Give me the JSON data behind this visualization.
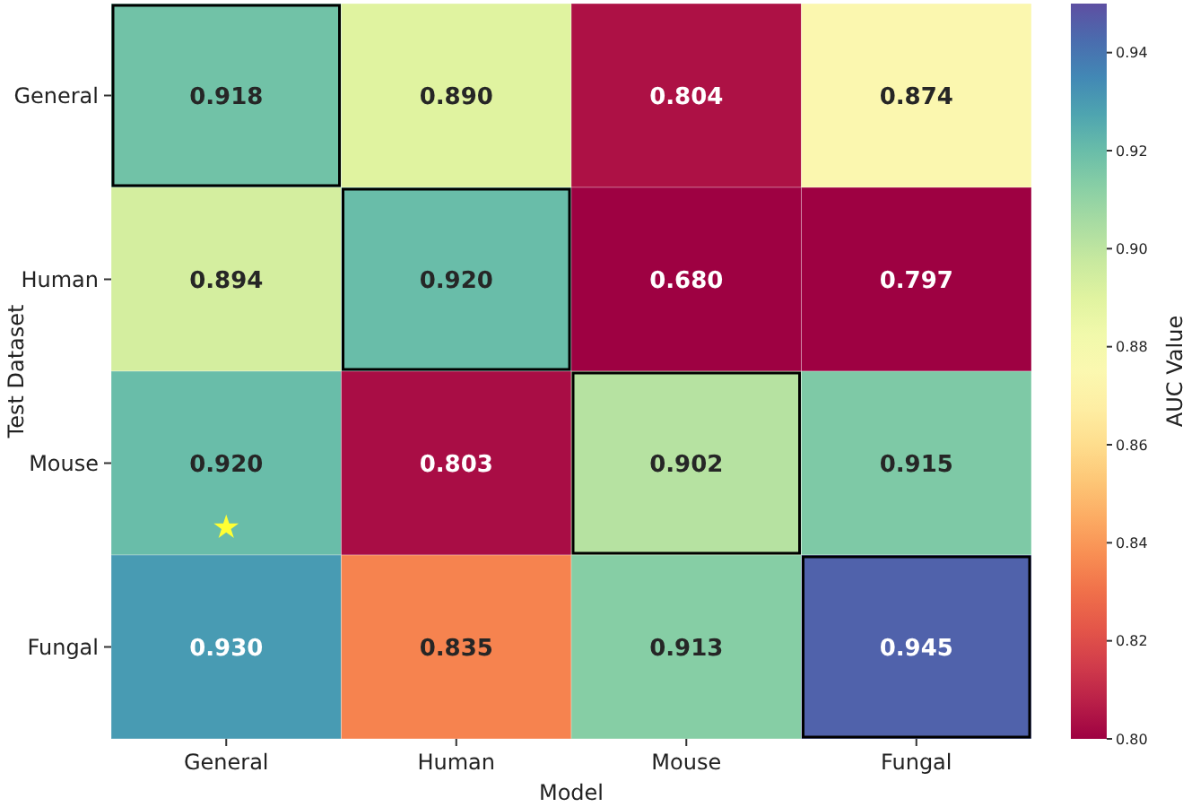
{
  "chart_data": {
    "type": "heatmap",
    "xlabel": "Model",
    "ylabel": "Test Dataset",
    "clabel": "AUC Value",
    "categories": [
      "General",
      "Human",
      "Mouse",
      "Fungal"
    ],
    "y_categories": [
      "General",
      "Human",
      "Mouse",
      "Fungal"
    ],
    "cells": [
      [
        0.918,
        0.89,
        0.804,
        0.874
      ],
      [
        0.894,
        0.92,
        0.68,
        0.797
      ],
      [
        0.92,
        0.803,
        0.902,
        0.915
      ],
      [
        0.93,
        0.835,
        0.913,
        0.945
      ]
    ],
    "cell_labels": [
      [
        "0.918",
        "0.890",
        "0.804",
        "0.874"
      ],
      [
        "0.894",
        "0.920",
        "0.680",
        "0.797"
      ],
      [
        "0.920",
        "0.803",
        "0.902",
        "0.915"
      ],
      [
        "0.930",
        "0.835",
        "0.913",
        "0.945"
      ]
    ],
    "clim": [
      0.8,
      0.95
    ],
    "cticks": [
      {
        "value": 0.8,
        "label": "0.80"
      },
      {
        "value": 0.82,
        "label": "0.82"
      },
      {
        "value": 0.84,
        "label": "0.84"
      },
      {
        "value": 0.86,
        "label": "0.86"
      },
      {
        "value": 0.88,
        "label": "0.88"
      },
      {
        "value": 0.9,
        "label": "0.90"
      },
      {
        "value": 0.92,
        "label": "0.92"
      },
      {
        "value": 0.94,
        "label": "0.94"
      }
    ]
  }
}
